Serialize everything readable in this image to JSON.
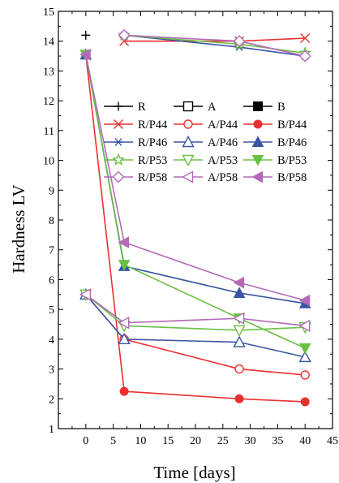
{
  "chart_data": {
    "type": "line",
    "title": "",
    "xlabel": "Time [days]",
    "ylabel": "Hardness LV",
    "xlim": [
      -5,
      45
    ],
    "ylim": [
      1,
      15
    ],
    "xticks": [
      "0",
      "5",
      "10",
      "15",
      "20",
      "25",
      "30",
      "35",
      "40",
      "45"
    ],
    "yticks": [
      "1",
      "2",
      "3",
      "4",
      "5",
      "6",
      "7",
      "8",
      "9",
      "10",
      "11",
      "12",
      "13",
      "14",
      "15"
    ],
    "grid": false,
    "legend_position": "upper right, inside plot",
    "series": [
      {
        "name": "R",
        "color": "#000000",
        "marker": "plus",
        "x": [
          0
        ],
        "y": [
          14.2
        ]
      },
      {
        "name": "A",
        "color": "#000000",
        "marker": "square-open",
        "x": [],
        "y": []
      },
      {
        "name": "B",
        "color": "#000000",
        "marker": "square-filled",
        "x": [],
        "y": []
      },
      {
        "name": "R/P44",
        "color": "#e8312f",
        "marker": "x",
        "x": [
          7,
          28,
          40
        ],
        "y": [
          14.0,
          14.0,
          14.1
        ]
      },
      {
        "name": "A/P44",
        "color": "#e8312f",
        "marker": "circle-open",
        "x": [
          0,
          7,
          28,
          40
        ],
        "y": [
          5.5,
          4.0,
          3.0,
          2.8
        ]
      },
      {
        "name": "B/P44",
        "color": "#e8312f",
        "marker": "circle-filled",
        "x": [
          0,
          7,
          28,
          40
        ],
        "y": [
          13.55,
          2.25,
          2.0,
          1.9
        ]
      },
      {
        "name": "R/P46",
        "color": "#3a55a4",
        "marker": "asterisk",
        "x": [
          7,
          28,
          40
        ],
        "y": [
          14.2,
          13.8,
          13.5
        ]
      },
      {
        "name": "A/P46",
        "color": "#3a55a4",
        "marker": "triangle-up-open",
        "x": [
          0,
          7,
          28,
          40
        ],
        "y": [
          5.5,
          4.0,
          3.9,
          3.4
        ]
      },
      {
        "name": "B/P46",
        "color": "#3a55a4",
        "marker": "triangle-up-filled",
        "x": [
          0,
          7,
          28,
          40
        ],
        "y": [
          13.55,
          6.45,
          5.55,
          5.2
        ]
      },
      {
        "name": "R/P53",
        "color": "#6abf45",
        "marker": "star-open",
        "x": [
          7,
          28,
          40
        ],
        "y": [
          14.2,
          13.9,
          13.6
        ]
      },
      {
        "name": "A/P53",
        "color": "#6abf45",
        "marker": "triangle-down-open",
        "x": [
          0,
          7,
          28,
          40
        ],
        "y": [
          5.5,
          4.45,
          4.3,
          4.4
        ]
      },
      {
        "name": "B/P53",
        "color": "#6abf45",
        "marker": "triangle-down-filled",
        "x": [
          0,
          7,
          28,
          40
        ],
        "y": [
          13.55,
          6.5,
          4.7,
          3.7
        ]
      },
      {
        "name": "R/P58",
        "color": "#b46ab8",
        "marker": "diamond-open",
        "x": [
          7,
          28,
          40
        ],
        "y": [
          14.2,
          14.0,
          13.5
        ]
      },
      {
        "name": "A/P58",
        "color": "#b46ab8",
        "marker": "triangle-left-open",
        "x": [
          0,
          7,
          28,
          40
        ],
        "y": [
          5.5,
          4.55,
          4.7,
          4.45
        ]
      },
      {
        "name": "B/P58",
        "color": "#b46ab8",
        "marker": "triangle-left-filled",
        "x": [
          0,
          7,
          28,
          40
        ],
        "y": [
          13.55,
          7.25,
          5.9,
          5.3
        ]
      }
    ]
  }
}
